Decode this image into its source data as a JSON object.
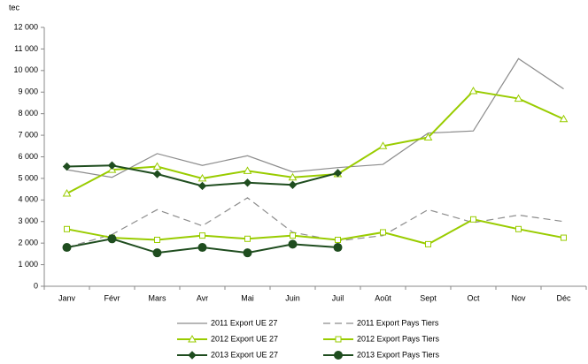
{
  "chart_data": {
    "type": "line",
    "y_label": "tec",
    "categories": [
      "Janv",
      "Févr",
      "Mars",
      "Avr",
      "Mai",
      "Juin",
      "Juil",
      "Août",
      "Sept",
      "Oct",
      "Nov",
      "Déc"
    ],
    "ylim": [
      0,
      12000
    ],
    "yticks": [
      0,
      {
        "value": 1000,
        "label": "1 000"
      },
      {
        "value": 2000,
        "label": "2 000"
      },
      {
        "value": 3000,
        "label": "3 000"
      },
      {
        "value": 4000,
        "label": "4 000"
      },
      {
        "value": 5000,
        "label": "5 000"
      },
      {
        "value": 6000,
        "label": "6 000"
      },
      {
        "value": 7000,
        "label": "7 000"
      },
      {
        "value": 8000,
        "label": "8 000"
      },
      {
        "value": 9000,
        "label": "9 000"
      },
      {
        "value": 10000,
        "label": "10 000"
      },
      {
        "value": 11000,
        "label": "11 000"
      },
      {
        "value": 12000,
        "label": "12 000"
      }
    ],
    "grid": false,
    "legend": "bottom",
    "series": [
      {
        "name": "2011 Export UE 27",
        "color": "#8c8c8c",
        "marker": null,
        "dash": false,
        "width": 1.2,
        "values": [
          5400,
          5050,
          6150,
          5600,
          6050,
          5300,
          5500,
          5650,
          7100,
          7200,
          10550,
          9150
        ]
      },
      {
        "name": "2011 Export Pays Tiers",
        "color": "#8c8c8c",
        "marker": null,
        "dash": true,
        "width": 1.2,
        "values": [
          1800,
          2400,
          3550,
          2800,
          4100,
          2500,
          2100,
          2350,
          3550,
          2950,
          3300,
          3000
        ]
      },
      {
        "name": "2012 Export UE 27",
        "color": "#99cc00",
        "marker": "triangle",
        "dash": false,
        "width": 2,
        "values": [
          4300,
          5400,
          5550,
          5000,
          5350,
          5050,
          5200,
          6500,
          6900,
          9050,
          8700,
          7750
        ]
      },
      {
        "name": "2012 Export Pays Tiers",
        "color": "#99cc00",
        "marker": "square",
        "dash": false,
        "width": 2,
        "values": [
          2650,
          2250,
          2150,
          2350,
          2200,
          2350,
          2150,
          2500,
          1950,
          3100,
          2650,
          2250
        ]
      },
      {
        "name": "2013 Export UE 27",
        "color": "#1f4d1f",
        "marker": "diamond",
        "dash": false,
        "width": 2,
        "values": [
          5550,
          5600,
          5200,
          4650,
          4800,
          4700,
          5250,
          null,
          null,
          null,
          null,
          null
        ]
      },
      {
        "name": "2013 Export Pays Tiers",
        "color": "#1f4d1f",
        "marker": "circle",
        "dash": false,
        "width": 2,
        "values": [
          1800,
          2200,
          1550,
          1800,
          1550,
          1950,
          1800,
          null,
          null,
          null,
          null,
          null
        ]
      }
    ]
  }
}
